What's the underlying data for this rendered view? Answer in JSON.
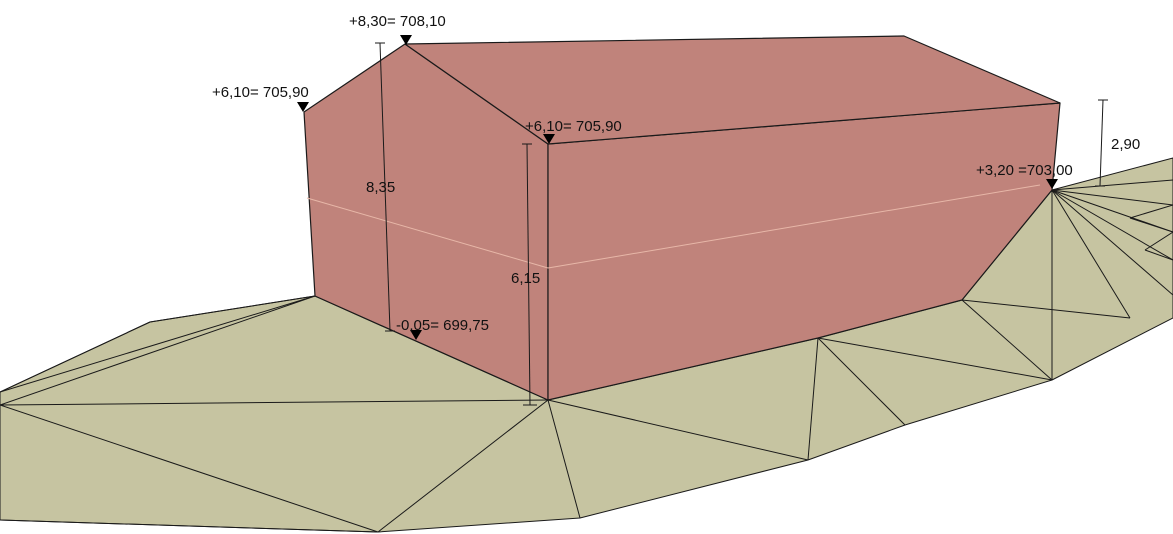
{
  "colors": {
    "terrain_fill": "#c6c4a1",
    "building_fill": "#c0837b",
    "line": "#1a1a1a",
    "text": "#111111"
  },
  "elevations": {
    "left_eave": "+6,10= 705,90",
    "ridge": "+8,30= 708,10",
    "front_eave": "+6,10= 705,90",
    "right_corner": "+3,20 =703,00",
    "ground_base": "-0,05= 699,75"
  },
  "dimensions": {
    "total_height": "8,35",
    "front_height": "6,15",
    "right_height": "2,90"
  }
}
